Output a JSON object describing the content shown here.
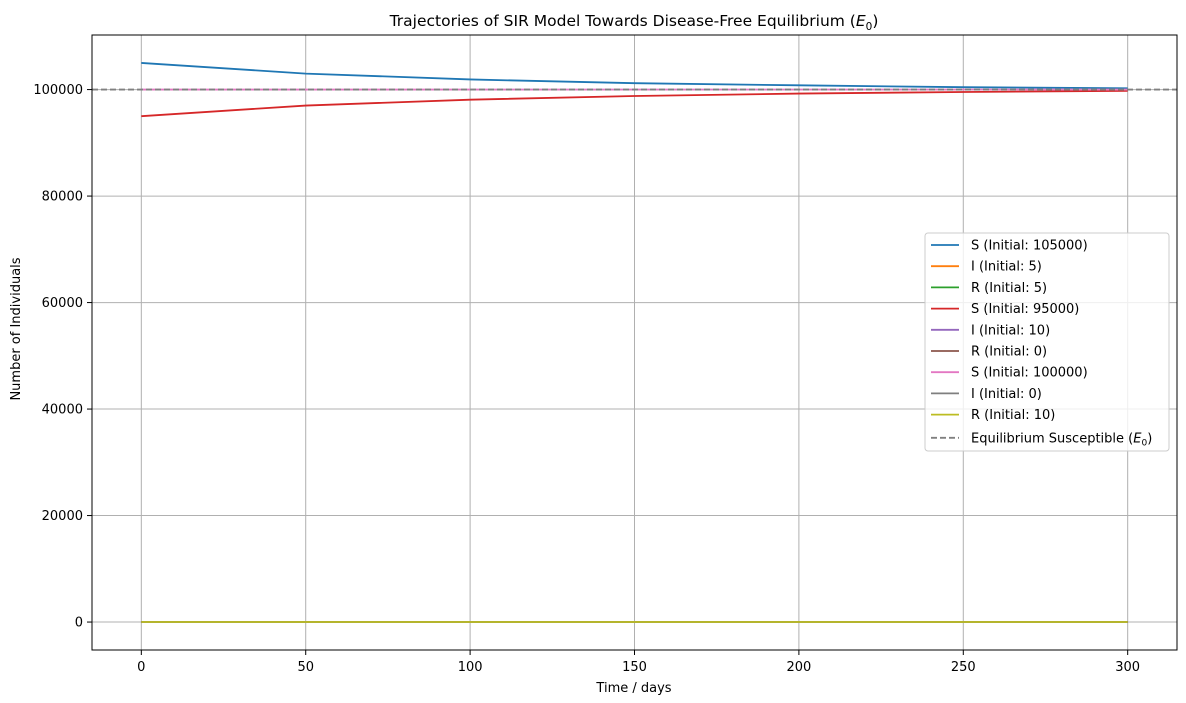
{
  "chart_data": {
    "type": "line",
    "title": "Trajectories of SIR Model Towards Disease-Free Equilibrium (",
    "title_symbol": "E",
    "title_subscript": "0",
    "title_close": ")",
    "xlabel": "Time / days",
    "ylabel": "Number of Individuals",
    "xlim": [
      -15,
      315
    ],
    "ylim": [
      -5250,
      110250
    ],
    "xticks": [
      0,
      50,
      100,
      150,
      200,
      250,
      300
    ],
    "yticks": [
      0,
      20000,
      40000,
      60000,
      80000,
      100000
    ],
    "grid": true,
    "legend_position": "center-right",
    "series": [
      {
        "name": "S (Initial: 105000)",
        "color": "#1f77b4",
        "x": [
          0,
          50,
          100,
          150,
          200,
          250,
          300
        ],
        "values": [
          105000,
          103000,
          101900,
          101200,
          100800,
          100450,
          100250
        ]
      },
      {
        "name": "I (Initial: 5)",
        "color": "#ff7f0e",
        "x": [
          0,
          300
        ],
        "values": [
          5,
          0
        ]
      },
      {
        "name": "R (Initial: 5)",
        "color": "#2ca02c",
        "x": [
          0,
          300
        ],
        "values": [
          5,
          10
        ]
      },
      {
        "name": "S (Initial: 95000)",
        "color": "#d62728",
        "x": [
          0,
          50,
          100,
          150,
          200,
          250,
          300
        ],
        "values": [
          95000,
          97000,
          98100,
          98800,
          99250,
          99550,
          99750
        ]
      },
      {
        "name": "I (Initial: 10)",
        "color": "#9467bd",
        "x": [
          0,
          300
        ],
        "values": [
          10,
          0
        ]
      },
      {
        "name": "R (Initial: 0)",
        "color": "#8c564b",
        "x": [
          0,
          300
        ],
        "values": [
          0,
          10
        ]
      },
      {
        "name": "S (Initial: 100000)",
        "color": "#e377c2",
        "x": [
          0,
          300
        ],
        "values": [
          100000,
          100000
        ]
      },
      {
        "name": "I (Initial: 0)",
        "color": "#7f7f7f",
        "x": [
          0,
          300
        ],
        "values": [
          0,
          0
        ]
      },
      {
        "name": "R (Initial: 10)",
        "color": "#bcbd22",
        "x": [
          0,
          300
        ],
        "values": [
          10,
          10
        ]
      }
    ],
    "reference_line": {
      "name": "Equilibrium Susceptible (",
      "symbol": "E",
      "subscript": "0",
      "close": ")",
      "y": 100000,
      "color": "#808080",
      "style": "dashed"
    }
  }
}
